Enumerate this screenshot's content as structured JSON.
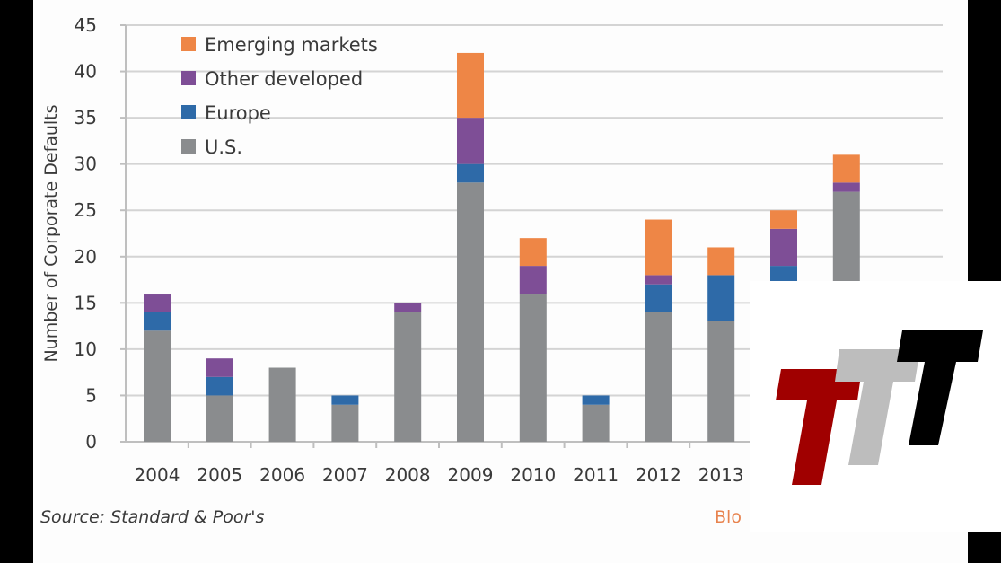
{
  "chart_data": {
    "type": "bar",
    "stacked": true,
    "title": "",
    "xlabel": "",
    "ylabel": "Number of Corporate Defaults",
    "ylim": [
      0,
      45
    ],
    "yticks": [
      0,
      5,
      10,
      15,
      20,
      25,
      30,
      35,
      40,
      45
    ],
    "grid": true,
    "legend_position": "top-left",
    "categories": [
      "2004",
      "2005",
      "2006",
      "2007",
      "2008",
      "2009",
      "2010",
      "2011",
      "2012",
      "2013",
      "",
      ""
    ],
    "series": [
      {
        "name": "U.S.",
        "color": "#8a8c8e",
        "values": [
          12,
          5,
          8,
          4,
          14,
          28,
          16,
          4,
          14,
          13,
          17,
          27
        ]
      },
      {
        "name": "Europe",
        "color": "#2e6aa8",
        "values": [
          2,
          2,
          0,
          1,
          0,
          2,
          0,
          1,
          3,
          5,
          2,
          0
        ]
      },
      {
        "name": "Other developed",
        "color": "#7e4e96",
        "values": [
          2,
          2,
          0,
          0,
          1,
          5,
          3,
          0,
          1,
          0,
          4,
          1
        ]
      },
      {
        "name": "Emerging markets",
        "color": "#ee8646",
        "values": [
          0,
          0,
          0,
          0,
          0,
          7,
          3,
          0,
          6,
          3,
          2,
          3
        ]
      }
    ],
    "legend": [
      "Emerging markets",
      "Other developed",
      "Europe",
      "U.S."
    ],
    "annotations": {
      "source": "Source: Standard & Poor's",
      "brand_partial": "Blo"
    }
  },
  "overlay": {
    "logo": "TTT",
    "logo_colors": [
      "#a00000",
      "#bdbdbd",
      "#000000"
    ]
  }
}
